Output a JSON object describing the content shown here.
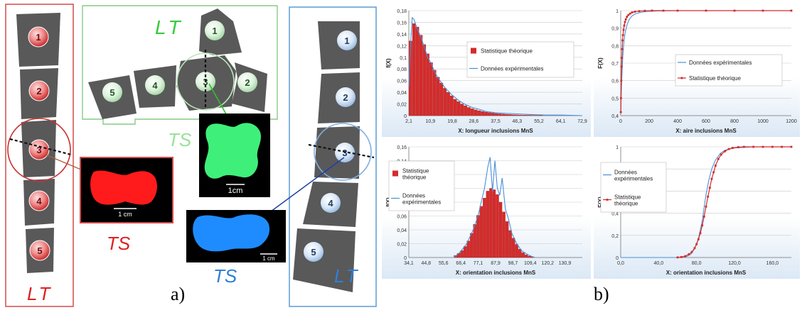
{
  "figure": {
    "label_a": "a)",
    "label_b": "b)"
  },
  "colors": {
    "red": "#d42b2b",
    "green": "#8fd68f",
    "blue": "#4a8fd6",
    "piece": "#595959"
  },
  "part_left": {
    "lt": "LT",
    "ts": "TS",
    "numbers": [
      "1",
      "2",
      "3",
      "4",
      "5"
    ],
    "scale": "1 cm"
  },
  "part_middle": {
    "lt": "LT",
    "ts": "TS",
    "numbers": [
      "1",
      "2",
      "3",
      "4",
      "5"
    ],
    "scale": "1cm"
  },
  "part_right": {
    "lt": "LT",
    "ts": "TS",
    "numbers": [
      "1",
      "2",
      "3",
      "4",
      "5"
    ],
    "scale": "1 cm"
  },
  "chart_data": [
    {
      "type": "bar",
      "id": "pdf-longueur",
      "xlabel": "X: longueur inclusions MnS",
      "ylabel": "f(X)",
      "x_ticks": [
        "2,1",
        "10,9",
        "19,8",
        "28,6",
        "37,5",
        "46,3",
        "55,2",
        "64,1",
        "72,9"
      ],
      "y_ticks": [
        "0",
        "0,02",
        "0,04",
        "0,06",
        "0,08",
        "0,1",
        "0,12",
        "0,14",
        "0,16",
        "0,18"
      ],
      "ylim": [
        0,
        0.18
      ],
      "xlim": [
        2.1,
        72.9
      ],
      "legend": [
        "Statistique théorique",
        "Données expérimentales"
      ],
      "legend_position": "center-right",
      "series": [
        {
          "name": "Statistique théorique",
          "style": "bars",
          "x": [
            2.8,
            4.2,
            5.6,
            7.0,
            8.4,
            9.8,
            11.2,
            12.6,
            14.0,
            15.4,
            16.8,
            18.2,
            19.6,
            21.0,
            22.4,
            23.8,
            25.2,
            26.6,
            28.0,
            29.4,
            30.8,
            32.2,
            33.6,
            35.0,
            36.4,
            37.8,
            39.2,
            40.6,
            42.0,
            43.4,
            44.8,
            46.2,
            47.6,
            49.0,
            50.4,
            51.8,
            53.2,
            54.6,
            56.0
          ],
          "values": [
            0.128,
            0.158,
            0.152,
            0.138,
            0.122,
            0.106,
            0.091,
            0.078,
            0.066,
            0.056,
            0.047,
            0.04,
            0.034,
            0.028,
            0.024,
            0.02,
            0.017,
            0.014,
            0.012,
            0.01,
            0.0085,
            0.0072,
            0.0061,
            0.0052,
            0.0044,
            0.0037,
            0.0031,
            0.0026,
            0.0022,
            0.0019,
            0.0016,
            0.0013,
            0.0011,
            0.0009,
            0.0008,
            0.0007,
            0.0006,
            0.0005,
            0.0004
          ]
        },
        {
          "name": "Données expérimentales",
          "style": "line",
          "x": [
            2.1,
            2.8,
            3.5,
            4.2,
            5.6,
            7.0,
            8.4,
            9.8,
            11.2,
            12.6,
            14.0,
            16.8,
            19.6,
            22.4,
            25.2,
            28.0,
            30.8,
            33.6,
            37.5,
            41.0,
            46.3,
            52.0,
            58.0,
            64.1,
            72.9
          ],
          "values": [
            0.05,
            0.12,
            0.168,
            0.165,
            0.148,
            0.135,
            0.118,
            0.1,
            0.09,
            0.075,
            0.065,
            0.048,
            0.036,
            0.026,
            0.019,
            0.014,
            0.011,
            0.007,
            0.005,
            0.004,
            0.003,
            0.002,
            0.001,
            0.001,
            0.0
          ]
        }
      ]
    },
    {
      "type": "line",
      "id": "cdf-aire",
      "xlabel": "X: aire inclusions MnS",
      "ylabel": "F(X)",
      "x_ticks": [
        "0",
        "200",
        "400",
        "600",
        "800",
        "1000",
        "1200"
      ],
      "y_ticks": [
        "0,4",
        "0,5",
        "0,6",
        "0,7",
        "0,8",
        "0,9",
        "1"
      ],
      "xlim": [
        0,
        1200
      ],
      "ylim": [
        0.4,
        1
      ],
      "legend": [
        "Données expérimentales",
        "Statistique théorique"
      ],
      "legend_position": "center-right",
      "series": [
        {
          "name": "Données expérimentales",
          "style": "line",
          "x": [
            0,
            5,
            10,
            15,
            20,
            30,
            45,
            60,
            80,
            100,
            130,
            160,
            200,
            260,
            320,
            400,
            600,
            800,
            1000,
            1200
          ],
          "values": [
            0.42,
            0.55,
            0.66,
            0.74,
            0.8,
            0.87,
            0.92,
            0.95,
            0.97,
            0.98,
            0.988,
            0.993,
            0.996,
            0.998,
            0.999,
            1,
            1,
            1,
            1,
            1
          ]
        },
        {
          "name": "Statistique théorique",
          "style": "markers",
          "x": [
            1,
            2,
            4,
            6,
            8,
            10,
            13,
            16,
            20,
            25,
            30,
            36,
            44,
            54,
            66,
            80,
            100,
            130,
            170,
            220,
            300,
            400,
            600,
            800,
            1000,
            1200
          ],
          "values": [
            0.42,
            0.5,
            0.6,
            0.68,
            0.73,
            0.78,
            0.83,
            0.86,
            0.89,
            0.915,
            0.935,
            0.95,
            0.965,
            0.975,
            0.983,
            0.99,
            0.994,
            0.997,
            0.999,
            1,
            1,
            1,
            1,
            1,
            1,
            1
          ]
        }
      ]
    },
    {
      "type": "bar",
      "id": "pdf-orientation",
      "xlabel": "X: orientation inclusions MnS",
      "ylabel": "f(X)",
      "x_ticks": [
        "34,1",
        "44,8",
        "55,6",
        "66,4",
        "77,1",
        "87,9",
        "98,7",
        "109,4",
        "120,2",
        "130,9"
      ],
      "y_ticks": [
        "0",
        "0,02",
        "0,04",
        "0,06",
        "0,08",
        "0,1",
        "0,12",
        "0,14",
        "0,16"
      ],
      "xlim": [
        34.1,
        141.7
      ],
      "ylim": [
        0,
        0.16
      ],
      "legend": [
        "Statistique théorique",
        "Données expérimentales"
      ],
      "legend_position": "top-left",
      "series": [
        {
          "name": "Statistique théorique",
          "style": "bars",
          "x": [
            63,
            65,
            67,
            69,
            71,
            73,
            75,
            77,
            79,
            81,
            83,
            85,
            87,
            89,
            91,
            93,
            95,
            97,
            99,
            101,
            103,
            105,
            107,
            109,
            111
          ],
          "values": [
            0.003,
            0.006,
            0.01,
            0.016,
            0.024,
            0.035,
            0.048,
            0.061,
            0.074,
            0.086,
            0.096,
            0.1,
            0.098,
            0.091,
            0.08,
            0.066,
            0.052,
            0.039,
            0.028,
            0.019,
            0.012,
            0.007,
            0.004,
            0.002,
            0.001
          ]
        },
        {
          "name": "Données expérimentales",
          "style": "line",
          "x": [
            62,
            66,
            70,
            74,
            77,
            79,
            81,
            83,
            84.5,
            86,
            87.5,
            89,
            90.5,
            92,
            94,
            96,
            98,
            101,
            104,
            108,
            112
          ],
          "values": [
            0.0,
            0.008,
            0.02,
            0.04,
            0.06,
            0.08,
            0.1,
            0.13,
            0.145,
            0.095,
            0.14,
            0.1,
            0.09,
            0.115,
            0.07,
            0.055,
            0.035,
            0.02,
            0.01,
            0.004,
            0.0
          ]
        }
      ]
    },
    {
      "type": "line",
      "id": "cdf-orientation",
      "xlabel": "X: orientation inclusions MnS",
      "ylabel": "F(X)",
      "x_ticks": [
        "0,0",
        "40,0",
        "80,0",
        "120,0",
        "160,0"
      ],
      "y_ticks": [
        "0",
        "0,2",
        "0,4",
        "0,6",
        "0,8",
        "1"
      ],
      "xlim": [
        0,
        180
      ],
      "ylim": [
        0,
        1
      ],
      "legend": [
        "Données expérimentales",
        "Statistique théorique"
      ],
      "legend_position": "top-left",
      "series": [
        {
          "name": "Données expérimentales",
          "style": "line",
          "x": [
            0,
            40,
            60,
            70,
            74,
            78,
            82,
            86,
            88,
            90,
            93,
            96,
            100,
            105,
            110,
            120,
            140,
            160,
            180
          ],
          "values": [
            0,
            0,
            0,
            0.01,
            0.03,
            0.08,
            0.17,
            0.33,
            0.45,
            0.57,
            0.7,
            0.8,
            0.88,
            0.94,
            0.97,
            0.99,
            1,
            1,
            1
          ]
        },
        {
          "name": "Statistique théorique",
          "style": "markers",
          "x": [
            60,
            64,
            68,
            72,
            75,
            78,
            80,
            82,
            84,
            86,
            88,
            90,
            92,
            94,
            96,
            98,
            100,
            103,
            106,
            110,
            114,
            118,
            124,
            130,
            140,
            150,
            160,
            170,
            180
          ],
          "values": [
            0.001,
            0.004,
            0.012,
            0.03,
            0.05,
            0.085,
            0.12,
            0.165,
            0.22,
            0.29,
            0.37,
            0.46,
            0.55,
            0.63,
            0.71,
            0.77,
            0.83,
            0.89,
            0.93,
            0.96,
            0.98,
            0.99,
            0.997,
            1,
            1,
            1,
            1,
            1,
            1
          ]
        }
      ]
    }
  ]
}
